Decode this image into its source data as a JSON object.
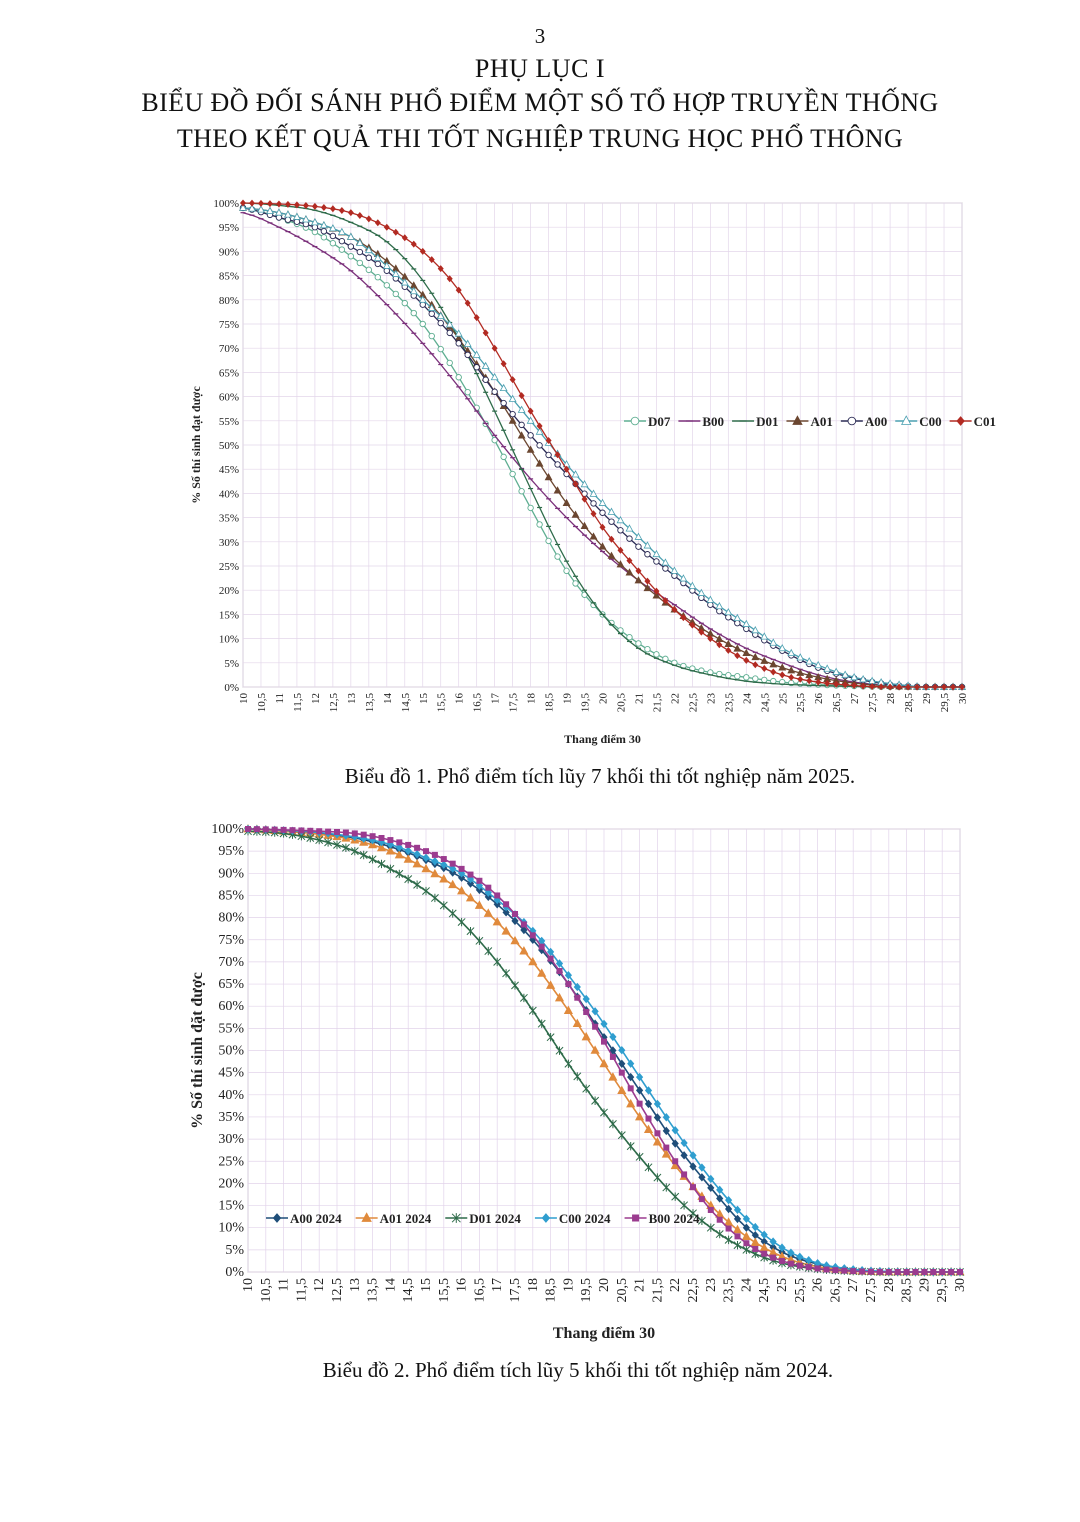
{
  "page": {
    "number": "3",
    "appendix": "PHỤ LỤC I",
    "title_line1": "BIỂU ĐỒ ĐỐI SÁNH PHỔ ĐIỂM MỘT SỐ TỔ HỢP TRUYỀN THỐNG",
    "title_line2": "THEO KẾT QUẢ THI TỐT NGHIỆP TRUNG HỌC PHỔ THÔNG"
  },
  "chart_data": [
    {
      "type": "line",
      "caption": "Biểu đồ 1. Phổ điểm tích lũy 7 khối thi tốt nghiệp năm 2025.",
      "xlabel": "Thang điểm 30",
      "ylabel": "% Số thí sinh đạt được",
      "xlim": [
        10,
        30
      ],
      "ylim": [
        0,
        100
      ],
      "x_ticks": [
        "10",
        "10,5",
        "11",
        "11,5",
        "12",
        "12,5",
        "13",
        "13,5",
        "14",
        "14,5",
        "15",
        "15,5",
        "16",
        "16,5",
        "17",
        "17,5",
        "18",
        "18,5",
        "19",
        "19,5",
        "20",
        "20,5",
        "21",
        "21,5",
        "22",
        "22,5",
        "23",
        "23,5",
        "24",
        "24,5",
        "25",
        "25,5",
        "26",
        "26,5",
        "27",
        "27,5",
        "28",
        "28,5",
        "29",
        "29,5",
        "30"
      ],
      "y_ticks": [
        "0%",
        "5%",
        "10%",
        "15%",
        "20%",
        "25%",
        "30%",
        "35%",
        "40%",
        "45%",
        "50%",
        "55%",
        "60%",
        "65%",
        "70%",
        "75%",
        "80%",
        "85%",
        "90%",
        "95%",
        "100%"
      ],
      "grid": true,
      "legend_position": "right-middle",
      "x": [
        10,
        11,
        12,
        13,
        14,
        15,
        16,
        17,
        18,
        19,
        20,
        21,
        22,
        23,
        24,
        25,
        26,
        27,
        28,
        29,
        30
      ],
      "series": [
        {
          "name": "D07",
          "color": "#5fae92",
          "marker": "circle-open",
          "values": [
            99,
            97,
            94,
            89,
            83,
            75,
            64,
            51,
            37,
            24,
            15,
            9,
            5,
            3,
            2,
            1,
            0.5,
            0.2,
            0,
            0,
            0
          ]
        },
        {
          "name": "B00",
          "color": "#7a2f7a",
          "marker": "dash",
          "values": [
            98,
            95,
            91,
            86,
            79,
            71,
            62,
            52,
            43,
            35,
            28,
            22,
            17,
            12,
            8,
            5,
            2.5,
            1,
            0.3,
            0,
            0
          ]
        },
        {
          "name": "D01",
          "color": "#2e6b4a",
          "marker": "dash",
          "values": [
            100,
            99.5,
            98.5,
            96,
            92,
            84,
            72,
            57,
            41,
            26,
            15,
            8,
            4.5,
            2.5,
            1.2,
            0.6,
            0.3,
            0.1,
            0,
            0,
            0
          ]
        },
        {
          "name": "A01",
          "color": "#6b4630",
          "marker": "triangle",
          "values": [
            99,
            98,
            96,
            93,
            88,
            81,
            72,
            61,
            49,
            38,
            29,
            22,
            16,
            11,
            7,
            4,
            2,
            0.8,
            0.2,
            0,
            0
          ]
        },
        {
          "name": "A00",
          "color": "#2b2b55",
          "marker": "circle-open",
          "values": [
            99,
            97,
            95,
            91,
            86,
            79,
            71,
            61,
            52,
            44,
            36,
            29,
            23,
            17,
            12,
            7.5,
            4,
            1.8,
            0.5,
            0,
            0
          ]
        },
        {
          "name": "C00",
          "color": "#4a9fb0",
          "marker": "triangle-open",
          "values": [
            99,
            98,
            96,
            93,
            87,
            80,
            73,
            64,
            55,
            46,
            38,
            31,
            24,
            18,
            13,
            8,
            4.5,
            2,
            0.7,
            0,
            0
          ]
        },
        {
          "name": "C01",
          "color": "#b22a22",
          "marker": "diamond",
          "values": [
            100,
            99.8,
            99.3,
            98,
            95,
            90,
            82,
            70,
            57,
            45,
            33,
            24,
            16,
            10,
            5.5,
            2.5,
            1,
            0.3,
            0,
            0,
            0
          ]
        }
      ]
    },
    {
      "type": "line",
      "caption": "Biểu đồ 2. Phổ điểm tích lũy 5 khối thi tốt nghiệp năm 2024.",
      "xlabel": "Thang điểm 30",
      "ylabel": "% Số thí sinh đặt được",
      "xlim": [
        10,
        30
      ],
      "ylim": [
        0,
        100
      ],
      "x_ticks": [
        "10",
        "10,5",
        "11",
        "11,5",
        "12",
        "12,5",
        "13",
        "13,5",
        "14",
        "14,5",
        "15",
        "15,5",
        "16",
        "16,5",
        "17",
        "17,5",
        "18",
        "18,5",
        "19",
        "19,5",
        "20",
        "20,5",
        "21",
        "21,5",
        "22",
        "22,5",
        "23",
        "23,5",
        "24",
        "24,5",
        "25",
        "25,5",
        "26",
        "26,5",
        "27",
        "27,5",
        "28",
        "28,5",
        "29",
        "29,5",
        "30"
      ],
      "y_ticks": [
        "0%",
        "5%",
        "10%",
        "15%",
        "20%",
        "25%",
        "30%",
        "35%",
        "40%",
        "45%",
        "50%",
        "55%",
        "60%",
        "65%",
        "70%",
        "75%",
        "80%",
        "85%",
        "90%",
        "95%",
        "100%"
      ],
      "grid": true,
      "legend_position": "bottom-left",
      "x": [
        10,
        11,
        12,
        13,
        14,
        15,
        16,
        17,
        18,
        19,
        20,
        21,
        22,
        23,
        24,
        25,
        26,
        27,
        28,
        29,
        30
      ],
      "series": [
        {
          "name": "A00 2024",
          "color": "#1f4e79",
          "marker": "diamond",
          "values": [
            100,
            99.5,
            99,
            98,
            96,
            93,
            89,
            83,
            75,
            65,
            53,
            41,
            29,
            19,
            10,
            4.5,
            1.8,
            0.5,
            0.1,
            0,
            0
          ]
        },
        {
          "name": "A01 2024",
          "color": "#e08a3c",
          "marker": "triangle",
          "values": [
            100,
            99.5,
            98.8,
            97.5,
            95,
            91,
            86,
            79,
            70,
            59,
            47,
            35,
            24,
            15,
            8,
            3.5,
            1.2,
            0.3,
            0,
            0,
            0
          ]
        },
        {
          "name": "D01 2024",
          "color": "#2e6b4a",
          "marker": "star",
          "values": [
            99.5,
            99,
            97.5,
            95,
            91,
            86,
            79,
            70,
            59,
            47,
            36,
            26,
            17,
            10,
            5,
            2,
            0.7,
            0.2,
            0,
            0,
            0
          ]
        },
        {
          "name": "C00 2024",
          "color": "#2f9ecf",
          "marker": "diamond",
          "values": [
            100,
            99.7,
            99.2,
            98.2,
            96.5,
            93.5,
            90,
            84,
            77,
            67,
            56,
            44,
            32,
            21,
            12,
            5.5,
            2,
            0.6,
            0.1,
            0,
            0
          ]
        },
        {
          "name": "B00 2024",
          "color": "#9b3b8f",
          "marker": "square",
          "values": [
            100,
            99.8,
            99.5,
            99,
            97.5,
            95,
            91,
            85,
            76,
            65,
            52,
            38,
            25,
            14,
            6.5,
            2.5,
            0.8,
            0.2,
            0,
            0,
            0
          ]
        }
      ]
    }
  ]
}
